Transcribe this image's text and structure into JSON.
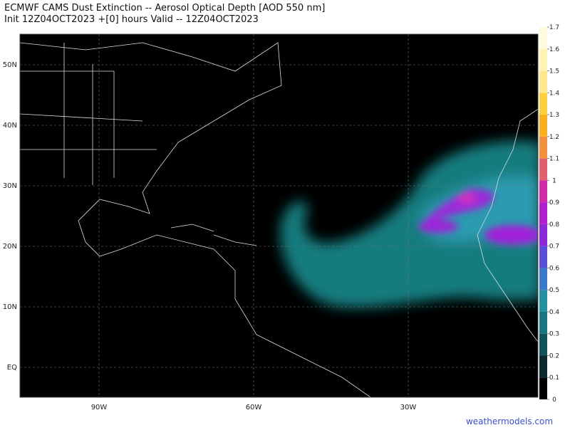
{
  "header": {
    "title": "ECMWF CAMS Dust Extinction -- Aerosol Optical Depth [AOD 550 nm]",
    "subtitle": "Init 12Z04OCT2023 +[0] hours Valid -- 12Z04OCT2023"
  },
  "map": {
    "lat_labels": [
      "50N",
      "40N",
      "30N",
      "20N",
      "10N",
      "EQ"
    ],
    "lon_labels": [
      "90W",
      "60W",
      "30W"
    ]
  },
  "colorbar": {
    "ticks": [
      0,
      0.1,
      0.2,
      0.3,
      0.4,
      0.5,
      0.6,
      0.7,
      0.8,
      0.9,
      1,
      1.1,
      1.2,
      1.3,
      1.4,
      1.5,
      1.6,
      1.7
    ],
    "colors": [
      "#000000",
      "#0b2a2e",
      "#135258",
      "#1b7680",
      "#2590a0",
      "#3a78c8",
      "#5a4ed8",
      "#8a2ad8",
      "#b01ed0",
      "#d02aa8",
      "#e06070",
      "#f09040",
      "#f8b020",
      "#fcd040",
      "#fde890",
      "#fef4b8",
      "#fffadc"
    ]
  },
  "watermark": "weathermodels.com"
}
